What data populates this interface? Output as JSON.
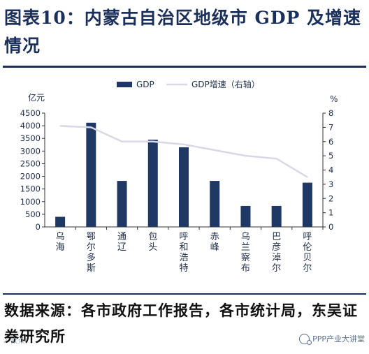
{
  "title": "图表10：内蒙古自治区地级市 GDP 及增速情况",
  "source": "数据来源：各市政府工作报告，各市统计局，东吴证券研究所",
  "watermark": "PPP产业大讲堂",
  "chart_data": {
    "type": "bar",
    "categories": [
      "乌海",
      "鄂尔多斯",
      "通辽",
      "包头",
      "呼和浩特",
      "赤峰",
      "乌兰察布",
      "巴彦淖尔",
      "呼伦贝尔"
    ],
    "series": [
      {
        "name": "GDP",
        "type": "bar",
        "axis": "left",
        "color": "#1f3864",
        "values": [
          400,
          4120,
          1820,
          3450,
          3150,
          1820,
          830,
          830,
          1750
        ]
      },
      {
        "name": "GDP增速（右轴）",
        "type": "line",
        "axis": "right",
        "color": "#d9d9e6",
        "values": [
          7.1,
          7.0,
          6.0,
          6.0,
          5.8,
          5.4,
          5.0,
          4.8,
          3.5
        ]
      }
    ],
    "yunit": "亿元",
    "y2unit": "%",
    "ylim": [
      0,
      4500
    ],
    "yticks": [
      0,
      500,
      1000,
      1500,
      2000,
      2500,
      3000,
      3500,
      4000,
      4500
    ],
    "y2lim": [
      0,
      8
    ],
    "y2ticks": [
      0,
      1,
      2,
      3,
      4,
      5,
      6,
      7,
      8
    ],
    "legend_position": "top-center",
    "grid": false
  }
}
